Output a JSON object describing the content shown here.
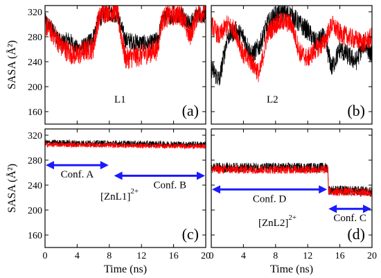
{
  "figure": {
    "ylabel": "SASA  (Å²)",
    "xlabel": "Time  (ns)"
  },
  "colors": {
    "series_black": "#000000",
    "series_red": "#ff0000",
    "arrow": "#1a1aff"
  },
  "chart_data": [
    {
      "type": "line",
      "panel": "(a)",
      "name": "L1",
      "xlim": [
        0,
        20
      ],
      "ylim": [
        140,
        330
      ],
      "yticks": [
        160,
        200,
        240,
        280,
        320
      ],
      "xticks": [
        0,
        4,
        8,
        12,
        16,
        20
      ],
      "ylabel": "SASA  (Å²)",
      "series": [
        {
          "color": "black",
          "x": [
            0,
            1,
            2,
            3,
            4,
            5,
            6,
            6.5,
            7,
            8,
            9,
            10,
            11,
            12,
            13,
            14,
            14.5,
            15,
            16,
            17,
            18,
            19,
            20
          ],
          "values": [
            305,
            290,
            270,
            275,
            260,
            265,
            280,
            300,
            312,
            318,
            315,
            275,
            272,
            270,
            268,
            275,
            300,
            315,
            312,
            318,
            300,
            316,
            315
          ]
        },
        {
          "color": "red",
          "x": [
            0,
            1,
            2,
            3,
            4,
            5,
            6,
            6.5,
            7,
            8,
            9,
            10,
            11,
            12,
            13,
            14,
            14.5,
            15,
            16,
            17,
            18,
            19,
            20
          ],
          "values": [
            300,
            285,
            265,
            255,
            250,
            258,
            262,
            300,
            318,
            322,
            318,
            245,
            248,
            250,
            255,
            260,
            305,
            312,
            315,
            316,
            280,
            318,
            320
          ]
        }
      ]
    },
    {
      "type": "line",
      "panel": "(b)",
      "name": "L2",
      "xlim": [
        0,
        20
      ],
      "ylim": [
        140,
        330
      ],
      "series": [
        {
          "color": "black",
          "x": [
            0,
            1,
            2,
            3,
            4,
            5,
            6,
            7,
            8,
            9,
            10,
            11,
            12,
            13,
            14,
            15,
            16,
            17,
            18,
            19,
            20
          ],
          "values": [
            230,
            210,
            280,
            290,
            280,
            250,
            265,
            300,
            315,
            318,
            315,
            300,
            290,
            270,
            280,
            230,
            260,
            250,
            240,
            270,
            250
          ]
        },
        {
          "color": "red",
          "x": [
            0,
            1,
            2,
            3,
            4,
            5,
            6,
            7,
            8,
            9,
            10,
            11,
            12,
            13,
            14,
            15,
            16,
            17,
            18,
            19,
            20
          ],
          "values": [
            300,
            280,
            300,
            290,
            250,
            240,
            220,
            285,
            300,
            305,
            300,
            255,
            245,
            260,
            270,
            300,
            285,
            280,
            275,
            270,
            280
          ]
        }
      ]
    },
    {
      "type": "line",
      "panel": "(c)",
      "name": "[ZnL1]",
      "name_sup": "2+",
      "xlim": [
        0,
        20
      ],
      "ylim": [
        140,
        330
      ],
      "yticks": [
        160,
        200,
        240,
        280,
        320
      ],
      "xticks": [
        0,
        4,
        8,
        12,
        16,
        20
      ],
      "xticklabels": [
        "0",
        "4",
        "8",
        "12",
        "16",
        "20"
      ],
      "ylabel": "SASA  (Å²)",
      "xlabel": "Time  (ns)",
      "series": [
        {
          "color": "black",
          "x": [
            0,
            20
          ],
          "values": [
            308,
            305
          ]
        },
        {
          "color": "red",
          "x": [
            0,
            20
          ],
          "values": [
            305,
            302
          ]
        }
      ],
      "annotations": [
        {
          "label": "Conf. A",
          "from": 0,
          "to": 8,
          "y": 272
        },
        {
          "label": "Conf. B",
          "from": 8.5,
          "to": 20,
          "y": 255
        }
      ]
    },
    {
      "type": "line",
      "panel": "(d)",
      "name": "[ZnL2]",
      "name_sup": "2+",
      "xlim": [
        0,
        20
      ],
      "ylim": [
        140,
        330
      ],
      "xticks": [
        0,
        4,
        8,
        12,
        16,
        20
      ],
      "xticklabels": [
        "0",
        "4",
        "8",
        "12",
        "16",
        "20"
      ],
      "xlabel": "Time  (ns)",
      "series": [
        {
          "color": "black",
          "x": [
            0,
            14.5,
            14.6,
            20
          ],
          "values": [
            268,
            268,
            232,
            230
          ]
        },
        {
          "color": "red",
          "x": [
            0,
            14.5,
            14.6,
            20
          ],
          "values": [
            265,
            265,
            230,
            228
          ]
        }
      ],
      "annotations": [
        {
          "label": "Conf. D",
          "from": 0,
          "to": 14.5,
          "y": 233
        },
        {
          "label": "Conf. C",
          "from": 14.5,
          "to": 20,
          "y": 202
        }
      ]
    }
  ]
}
